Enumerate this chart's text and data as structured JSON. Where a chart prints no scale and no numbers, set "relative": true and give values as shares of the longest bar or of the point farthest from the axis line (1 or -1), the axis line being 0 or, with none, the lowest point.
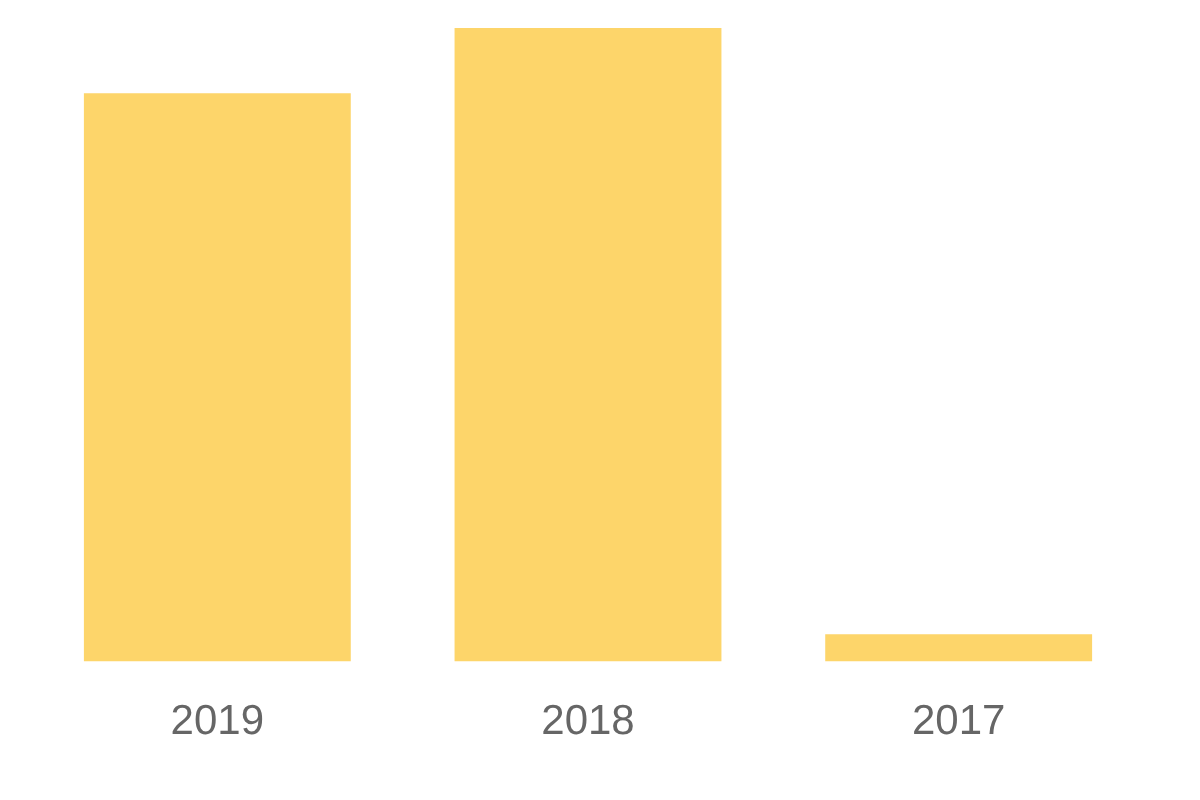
{
  "chart_data": {
    "type": "bar",
    "relative": true,
    "categories": [
      "2019",
      "2018",
      "2017"
    ],
    "values": [
      0.897,
      1,
      0.043
    ],
    "color": "#fdd56a",
    "grid": false,
    "legend": false
  }
}
